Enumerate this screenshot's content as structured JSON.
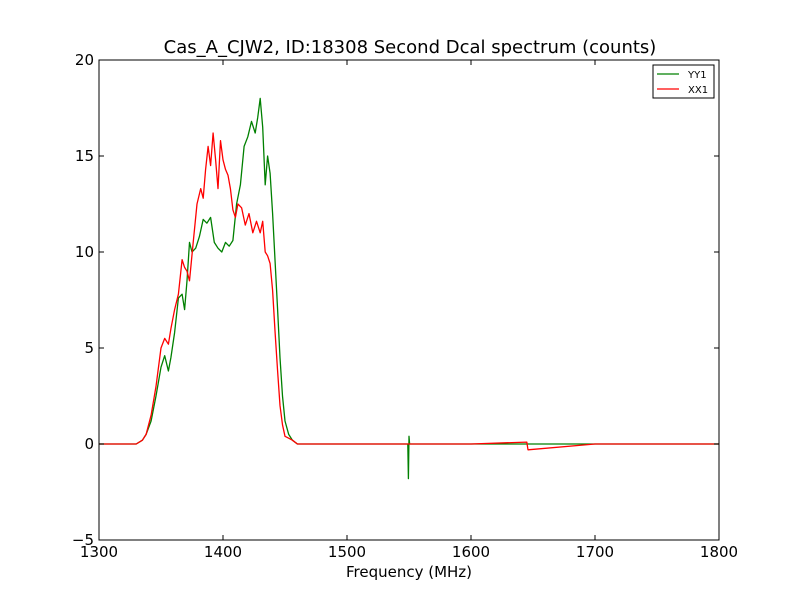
{
  "chart_data": {
    "type": "line",
    "title": "Cas_A_CJW2, ID:18308 Second Dcal spectrum (counts)",
    "xlabel": "Frequency (MHz)",
    "ylabel": "",
    "xlim": [
      1300,
      1800
    ],
    "ylim": [
      -5,
      20
    ],
    "x_ticks": [
      1300,
      1400,
      1500,
      1600,
      1700,
      1800
    ],
    "y_ticks": [
      -5,
      0,
      5,
      10,
      15,
      20
    ],
    "x_tick_labels": [
      "1300",
      "1400",
      "1500",
      "1600",
      "1700",
      "1800"
    ],
    "y_tick_labels": [
      "−5",
      "0",
      "5",
      "10",
      "15",
      "20"
    ],
    "grid": false,
    "legend_position": "top-right",
    "series": [
      {
        "name": "YY1",
        "color": "#008000",
        "x": [
          1300,
          1330,
          1335,
          1338,
          1342,
          1346,
          1350,
          1353,
          1356,
          1358,
          1361,
          1364,
          1367,
          1369,
          1371,
          1373,
          1375,
          1378,
          1381,
          1384,
          1387,
          1390,
          1393,
          1396,
          1399,
          1402,
          1405,
          1408,
          1411,
          1414,
          1417,
          1420,
          1423,
          1426,
          1428,
          1430,
          1432,
          1434,
          1436,
          1438,
          1440,
          1442,
          1444,
          1446,
          1448,
          1450,
          1453,
          1456,
          1460,
          1470,
          1480,
          1500,
          1549,
          1549.5,
          1550,
          1550.5,
          1551,
          1560,
          1600,
          1700,
          1800
        ],
        "y": [
          0,
          0,
          0.2,
          0.5,
          1.2,
          2.5,
          4.0,
          4.6,
          3.8,
          4.5,
          5.8,
          7.6,
          7.8,
          7.0,
          8.5,
          10.5,
          10.0,
          10.2,
          10.8,
          11.7,
          11.5,
          11.8,
          10.5,
          10.2,
          10.0,
          10.5,
          10.3,
          10.6,
          12.5,
          13.5,
          15.5,
          16.0,
          16.8,
          16.2,
          17.0,
          18.0,
          16.5,
          13.5,
          15.0,
          14.1,
          12.0,
          9.5,
          7.0,
          4.5,
          2.5,
          1.2,
          0.5,
          0.2,
          0,
          0,
          0,
          0,
          0,
          -1.8,
          0.4,
          0,
          0,
          0,
          0,
          0,
          0
        ]
      },
      {
        "name": "XX1",
        "color": "#ff0000",
        "x": [
          1300,
          1330,
          1335,
          1338,
          1342,
          1346,
          1350,
          1353,
          1356,
          1358,
          1361,
          1364,
          1367,
          1369,
          1371,
          1373,
          1376,
          1379,
          1382,
          1384,
          1386,
          1388,
          1390,
          1392,
          1394,
          1396,
          1398,
          1400,
          1402,
          1404,
          1406,
          1408,
          1410,
          1412,
          1415,
          1418,
          1421,
          1424,
          1427,
          1430,
          1432,
          1434,
          1436,
          1438,
          1440,
          1442,
          1444,
          1446,
          1448,
          1450,
          1453,
          1456,
          1460,
          1470,
          1500,
          1560,
          1600,
          1645,
          1646,
          1700,
          1800
        ],
        "y": [
          0,
          0,
          0.2,
          0.5,
          1.5,
          3.0,
          5.0,
          5.5,
          5.2,
          6.0,
          7.0,
          7.8,
          9.6,
          9.2,
          9.0,
          8.5,
          10.5,
          12.5,
          13.3,
          12.8,
          14.3,
          15.5,
          14.5,
          16.2,
          14.8,
          13.3,
          15.8,
          14.8,
          14.3,
          14.0,
          13.3,
          12.2,
          11.8,
          12.5,
          12.3,
          11.4,
          12.0,
          11.0,
          11.6,
          11.0,
          11.6,
          10.0,
          9.8,
          9.4,
          8.0,
          5.8,
          3.8,
          2.0,
          1.0,
          0.4,
          0.3,
          0.2,
          0,
          0,
          0,
          0,
          0,
          0.1,
          -0.3,
          0,
          0
        ]
      }
    ]
  }
}
